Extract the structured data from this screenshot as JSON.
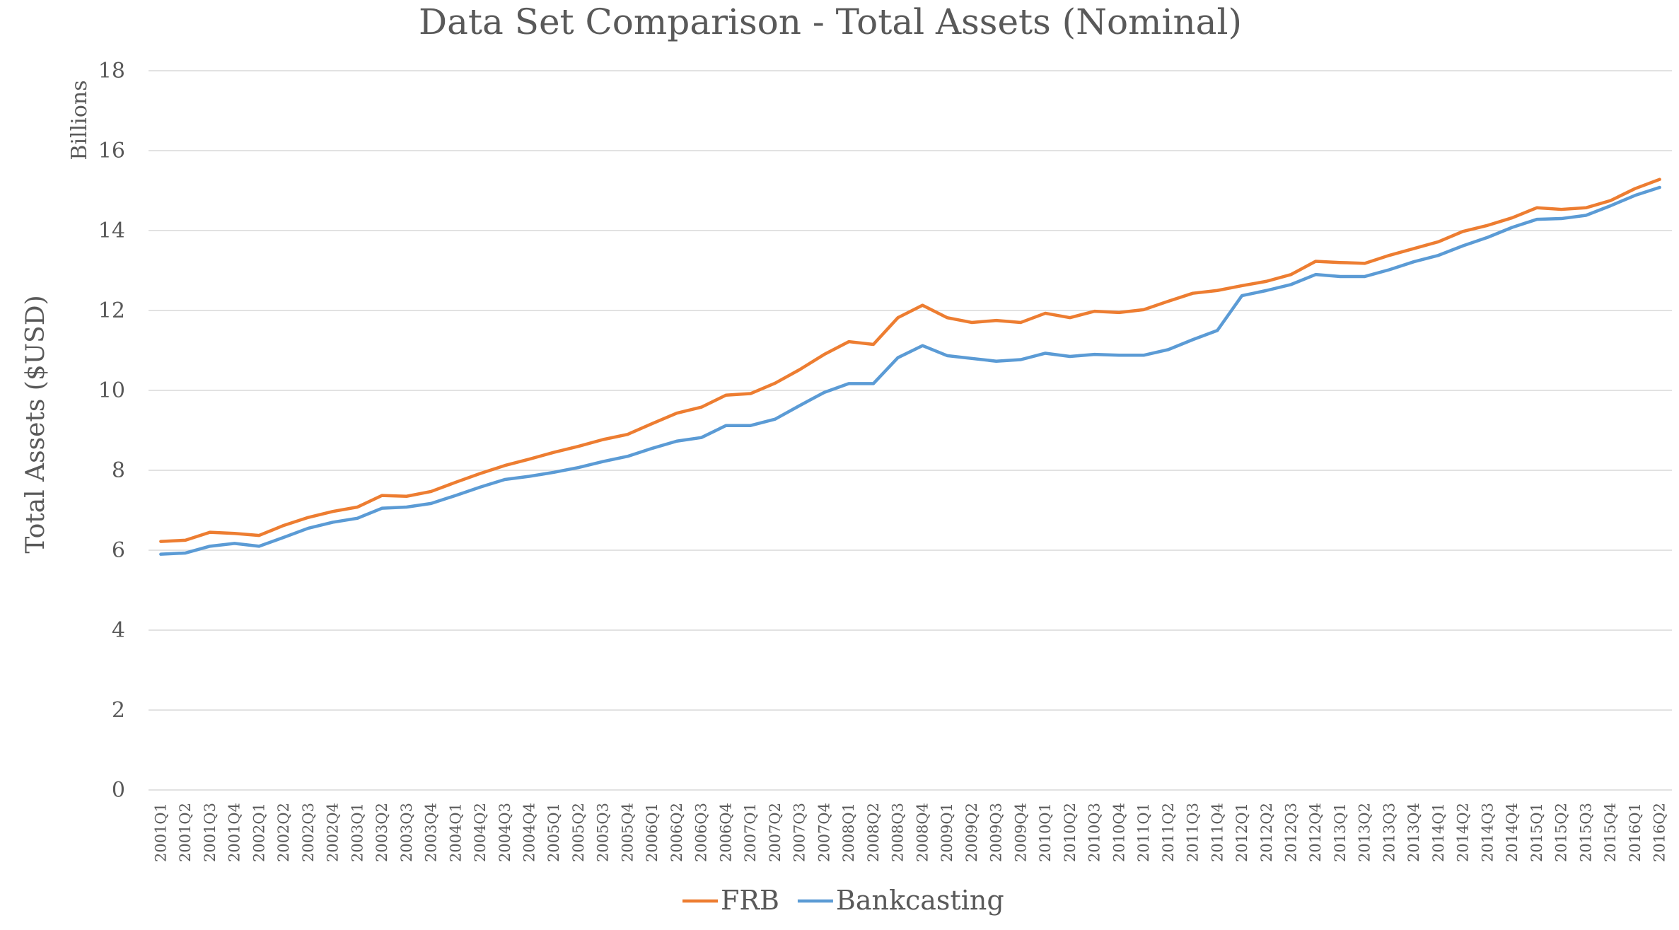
{
  "chart_data": {
    "type": "line",
    "title": "Data Set Comparison - Total Assets (Nominal)",
    "ylabel": "Total Assets ($USD)",
    "yunit": "Billions",
    "xlabel": "",
    "ylim": [
      0,
      18
    ],
    "yticks": [
      0,
      2,
      4,
      6,
      8,
      10,
      12,
      14,
      16,
      18
    ],
    "grid": true,
    "legend_position": "bottom",
    "categories": [
      "2001Q1",
      "2001Q2",
      "2001Q3",
      "2001Q4",
      "2002Q1",
      "2002Q2",
      "2002Q3",
      "2002Q4",
      "2003Q1",
      "2003Q2",
      "2003Q3",
      "2003Q4",
      "2004Q1",
      "2004Q2",
      "2004Q3",
      "2004Q4",
      "2005Q1",
      "2005Q2",
      "2005Q3",
      "2005Q4",
      "2006Q1",
      "2006Q2",
      "2006Q3",
      "2006Q4",
      "2007Q1",
      "2007Q2",
      "2007Q3",
      "2007Q4",
      "2008Q1",
      "2008Q2",
      "2008Q3",
      "2008Q4",
      "2009Q1",
      "2009Q2",
      "2009Q3",
      "2009Q4",
      "2010Q1",
      "2010Q2",
      "2010Q3",
      "2010Q4",
      "2011Q1",
      "2011Q2",
      "2011Q3",
      "2011Q4",
      "2012Q1",
      "2012Q2",
      "2012Q3",
      "2012Q4",
      "2013Q1",
      "2013Q2",
      "2013Q3",
      "2013Q4",
      "2014Q1",
      "2014Q2",
      "2014Q3",
      "2014Q4",
      "2015Q1",
      "2015Q2",
      "2015Q3",
      "2015Q4",
      "2016Q1",
      "2016Q2"
    ],
    "series": [
      {
        "name": "FRB",
        "color": "#ED7D31",
        "values": [
          6.22,
          6.25,
          6.45,
          6.42,
          6.37,
          6.62,
          6.82,
          6.97,
          7.08,
          7.37,
          7.35,
          7.47,
          7.7,
          7.92,
          8.12,
          8.28,
          8.45,
          8.6,
          8.77,
          8.9,
          9.17,
          9.43,
          9.58,
          9.88,
          9.92,
          10.18,
          10.52,
          10.9,
          11.22,
          11.15,
          11.82,
          12.13,
          11.82,
          11.7,
          11.75,
          11.7,
          11.93,
          11.82,
          11.98,
          11.95,
          12.02,
          12.23,
          12.43,
          12.5,
          12.62,
          12.73,
          12.9,
          13.23,
          13.2,
          13.18,
          13.38,
          13.55,
          13.72,
          13.98,
          14.13,
          14.32,
          14.57,
          14.53,
          14.57,
          14.75,
          15.05,
          15.28
        ]
      },
      {
        "name": "Bankcasting",
        "color": "#5B9BD5",
        "values": [
          5.9,
          5.93,
          6.1,
          6.17,
          6.1,
          6.32,
          6.55,
          6.7,
          6.8,
          7.05,
          7.08,
          7.17,
          7.37,
          7.58,
          7.77,
          7.85,
          7.95,
          8.07,
          8.22,
          8.35,
          8.55,
          8.73,
          8.82,
          9.12,
          9.12,
          9.28,
          9.62,
          9.95,
          10.17,
          10.17,
          10.82,
          11.12,
          10.87,
          10.8,
          10.73,
          10.77,
          10.93,
          10.85,
          10.9,
          10.88,
          10.88,
          11.02,
          11.27,
          11.5,
          12.37,
          12.5,
          12.65,
          12.9,
          12.85,
          12.85,
          13.02,
          13.22,
          13.38,
          13.62,
          13.83,
          14.08,
          14.28,
          14.3,
          14.38,
          14.62,
          14.88,
          15.08
        ]
      }
    ]
  }
}
